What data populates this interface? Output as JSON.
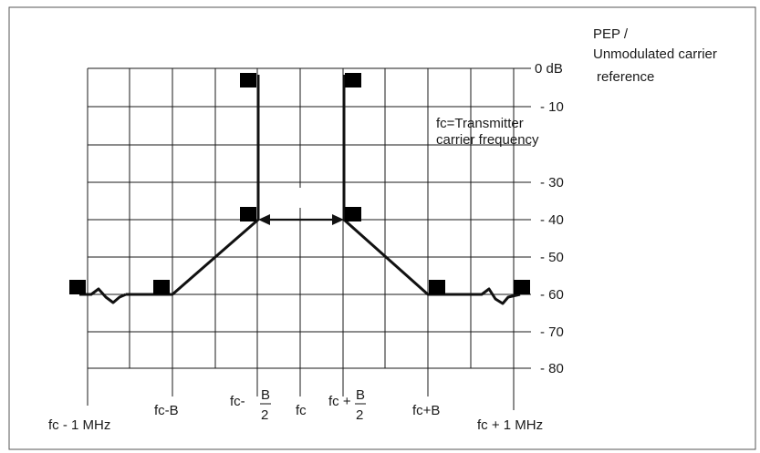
{
  "reference_label": [
    "PEP /",
    "Unmodulated carrier",
    "reference"
  ],
  "carrier_note": [
    "fc=Transmitter",
    "carrier frequency"
  ],
  "y_tick_labels": [
    "0 dB",
    "- 10",
    "- 30",
    "- 40",
    "- 50",
    "- 60",
    "- 70",
    "- 80"
  ],
  "x_labels": {
    "fc_minus_1mhz": "fc - 1 MHz",
    "fc_minus_b": "fc-B",
    "fc_minus_half_b_prefix": "fc-",
    "fc": "fc",
    "fc_plus_half_b_prefix": "fc +",
    "fc_plus_b": "fc+B",
    "fc_plus_1mhz": "fc + 1 MHz",
    "fraction_numerator": "B",
    "fraction_denominator": "2"
  },
  "colors": {
    "line": "#111111",
    "grid": "#1a1a1a",
    "frame": "#444444"
  }
}
